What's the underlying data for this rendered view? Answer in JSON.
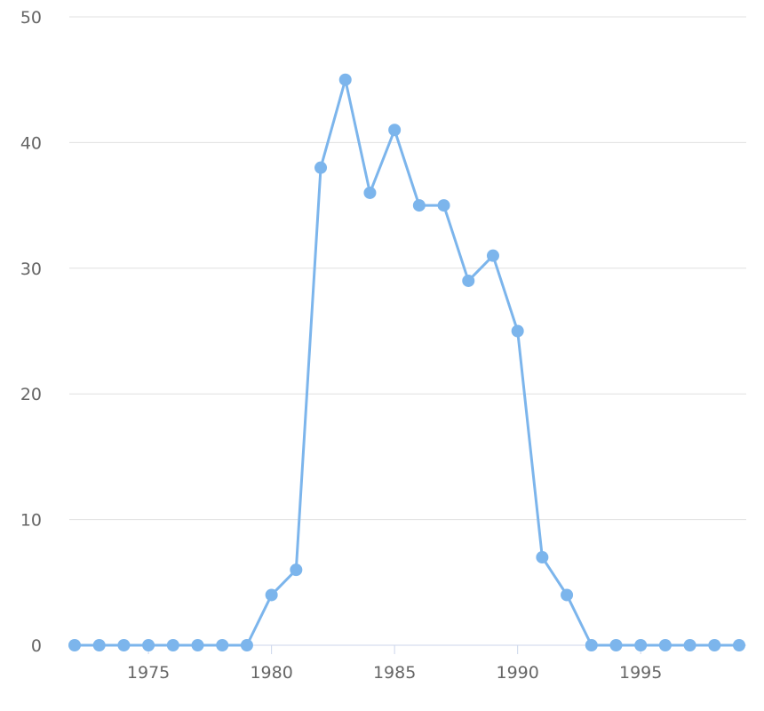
{
  "chart_data": {
    "type": "line",
    "title": "",
    "xlabel": "",
    "ylabel": "",
    "xlim": [
      1972,
      1999
    ],
    "ylim": [
      0,
      50
    ],
    "x_ticks": [
      1975,
      1980,
      1985,
      1990,
      1995
    ],
    "y_ticks": [
      0,
      10,
      20,
      30,
      40,
      50
    ],
    "grid": "horizontal",
    "legend": "none",
    "series": [
      {
        "color": "#7cb5ec",
        "x": [
          1972,
          1973,
          1974,
          1975,
          1976,
          1977,
          1978,
          1979,
          1980,
          1981,
          1982,
          1983,
          1984,
          1985,
          1986,
          1987,
          1988,
          1989,
          1990,
          1991,
          1992,
          1993,
          1994,
          1995,
          1996,
          1997,
          1998,
          1999
        ],
        "values": [
          0,
          0,
          0,
          0,
          0,
          0,
          0,
          0,
          4,
          6,
          38,
          45,
          36,
          41,
          35,
          35,
          29,
          31,
          25,
          7,
          4,
          0,
          0,
          0,
          0,
          0,
          0,
          0
        ]
      }
    ]
  }
}
